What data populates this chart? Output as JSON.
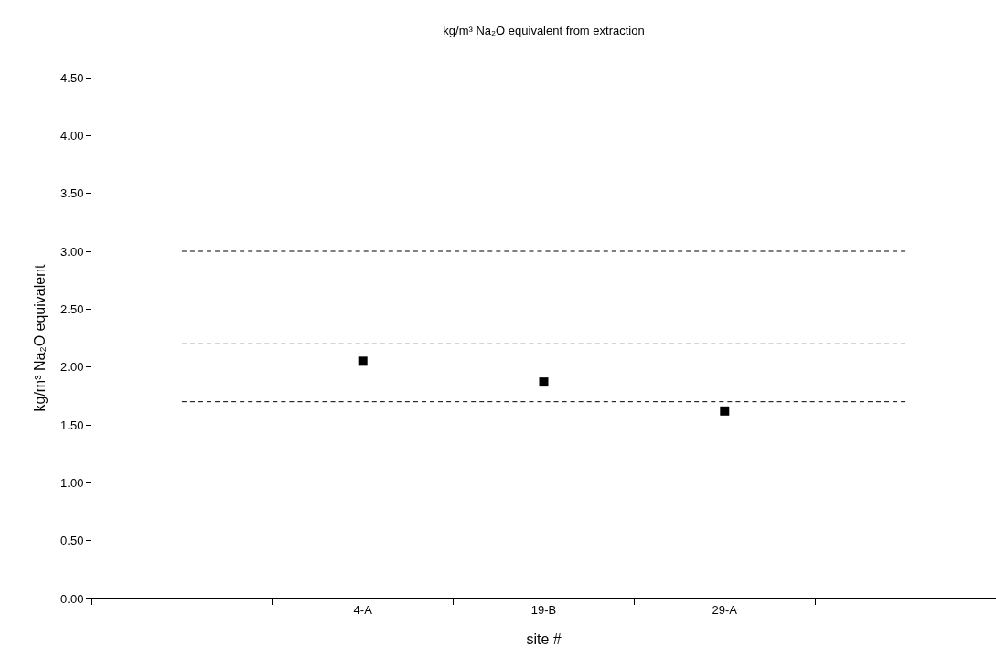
{
  "chart_data": {
    "type": "scatter",
    "title": "kg/m³ Na₂O equivalent from extraction",
    "xlabel": "site #",
    "ylabel": "kg/m³ Na₂O equivalent",
    "categories": [
      null,
      "4-A",
      "19-B",
      "29-A",
      null
    ],
    "series": [
      {
        "color": "#000000",
        "marker": "square",
        "values": [
          null,
          2.05,
          1.87,
          1.62,
          null
        ]
      },
      {
        "type": "line",
        "color": "#000000",
        "line_style": "dashed",
        "marker": "none",
        "values": [
          3.0,
          3.0,
          3.0,
          3.0,
          3.0
        ]
      },
      {
        "type": "line",
        "color": "#000000",
        "line_style": "dashed",
        "marker": "none",
        "values": [
          2.2,
          2.2,
          2.2,
          2.2,
          2.2
        ]
      },
      {
        "type": "line",
        "color": "#000000",
        "line_style": "dashed",
        "marker": "none",
        "values": [
          1.7,
          1.7,
          1.7,
          1.7,
          1.7
        ]
      }
    ],
    "ylim": [
      0,
      4.5
    ],
    "yticks": [
      {
        "value": 0,
        "label": "0.00"
      },
      {
        "value": 0.5,
        "label": "0.50"
      },
      {
        "value": 1,
        "label": "1.00"
      },
      {
        "value": 1.5,
        "label": "1.50"
      },
      {
        "value": 2,
        "label": "2.00"
      },
      {
        "value": 2.5,
        "label": "2.50"
      },
      {
        "value": 3,
        "label": "3.00"
      },
      {
        "value": 3.5,
        "label": "3.50"
      },
      {
        "value": 4,
        "label": "4.00"
      },
      {
        "value": 4.5,
        "label": "4.50"
      }
    ],
    "grid": false,
    "legend": false
  }
}
